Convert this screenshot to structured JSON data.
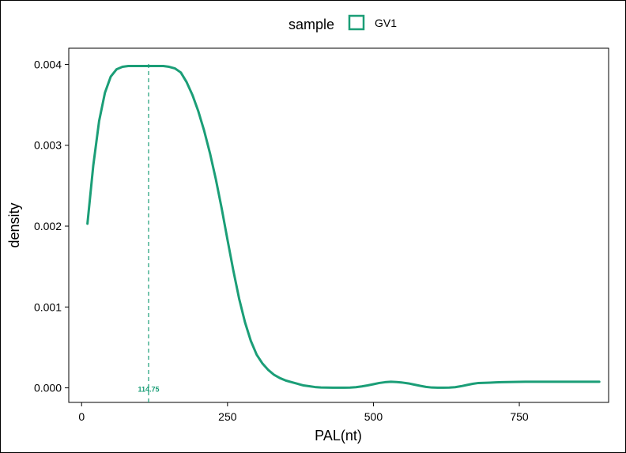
{
  "chart_data": {
    "type": "line",
    "xlabel": "PAL(nt)",
    "ylabel": "density",
    "xlim": [
      -22,
      903
    ],
    "ylim": [
      -0.00018,
      0.0042
    ],
    "x_ticks": [
      0,
      250,
      500,
      750
    ],
    "x_tick_labels": [
      "0",
      "250",
      "500",
      "750"
    ],
    "y_ticks": [
      0,
      0.001,
      0.002,
      0.003,
      0.004
    ],
    "y_tick_labels": [
      "0.000",
      "0.001",
      "0.002",
      "0.003",
      "0.004"
    ],
    "grid": false,
    "legend": {
      "title": "sample",
      "position": "top",
      "entries": [
        "GV1"
      ]
    },
    "series": [
      {
        "name": "GV1",
        "color": "#1b9e77",
        "x": [
          10,
          20,
          30,
          40,
          50,
          60,
          70,
          80,
          90,
          100,
          110,
          120,
          130,
          140,
          150,
          160,
          170,
          180,
          190,
          200,
          210,
          220,
          230,
          240,
          250,
          260,
          270,
          280,
          290,
          300,
          310,
          320,
          330,
          340,
          350,
          360,
          370,
          380,
          390,
          400,
          410,
          420,
          430,
          440,
          450,
          460,
          470,
          480,
          490,
          500,
          510,
          520,
          530,
          540,
          550,
          560,
          570,
          580,
          590,
          600,
          610,
          620,
          630,
          640,
          650,
          660,
          670,
          680,
          690,
          700,
          710,
          720,
          730,
          740,
          750,
          760,
          770,
          780,
          790,
          800,
          810,
          820,
          830,
          840,
          850,
          860,
          870,
          880,
          887
        ],
        "y": [
          0.00203,
          0.00275,
          0.0033,
          0.00365,
          0.00385,
          0.00394,
          0.00397,
          0.00398,
          0.00398,
          0.00398,
          0.00398,
          0.00398,
          0.00398,
          0.00398,
          0.00397,
          0.00395,
          0.0039,
          0.00378,
          0.00362,
          0.00342,
          0.00318,
          0.0029,
          0.00258,
          0.00222,
          0.00183,
          0.00145,
          0.0011,
          0.00081,
          0.00058,
          0.00041,
          0.0003,
          0.00022,
          0.00016,
          0.00012,
          9e-05,
          7e-05,
          5e-05,
          3e-05,
          2e-05,
          1e-05,
          5e-06,
          3e-06,
          2e-06,
          2e-06,
          2e-06,
          3e-06,
          8e-06,
          1.8e-05,
          3e-05,
          4.5e-05,
          6e-05,
          7e-05,
          7.5e-05,
          7.2e-05,
          6.5e-05,
          5.5e-05,
          4e-05,
          2.5e-05,
          1.2e-05,
          4e-06,
          2e-06,
          2e-06,
          3e-06,
          8e-06,
          2e-05,
          3.5e-05,
          5e-05,
          6e-05,
          6.2e-05,
          6.5e-05,
          6.8e-05,
          7e-05,
          7.2e-05,
          7.3e-05,
          7.4e-05,
          7.5e-05,
          7.5e-05,
          7.5e-05,
          7.5e-05,
          7.5e-05,
          7.5e-05,
          7.5e-05,
          7.5e-05,
          7.5e-05,
          7.5e-05,
          7.5e-05,
          7.5e-05,
          7.5e-05,
          7.5e-05
        ]
      }
    ],
    "annotations": [
      {
        "type": "vline",
        "x": 114.75,
        "label": "114.75",
        "style": "dashed",
        "color": "#1b9e77"
      }
    ]
  }
}
